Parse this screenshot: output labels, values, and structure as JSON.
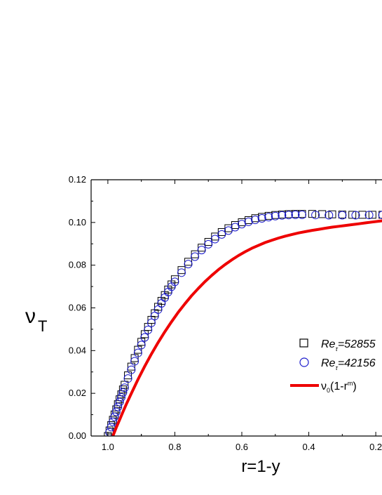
{
  "chart_data": {
    "type": "scatter",
    "xlabel": "r=1-y",
    "ylabel_main": "ν",
    "ylabel_sub": "T",
    "xlim": [
      1.05,
      0.15
    ],
    "ylim": [
      0.0,
      0.12
    ],
    "x_ticks": [
      "1.0",
      "0.8",
      "0.6",
      "0.4",
      "0.2"
    ],
    "y_ticks": [
      "0.00",
      "0.02",
      "0.04",
      "0.06",
      "0.08",
      "0.10",
      "0.12"
    ],
    "grid": false,
    "legend_position": "right",
    "colors": {
      "squares": "#000000",
      "circles": "#1a1acc",
      "fit": "#ee0000"
    },
    "series": [
      {
        "name": "Re_τ=52855",
        "legend_base": "Re",
        "legend_sub": "τ",
        "legend_rest": "=52855",
        "marker": "square",
        "r": [
          1.0,
          0.995,
          0.99,
          0.985,
          0.98,
          0.975,
          0.97,
          0.965,
          0.96,
          0.955,
          0.95,
          0.94,
          0.93,
          0.92,
          0.91,
          0.9,
          0.89,
          0.88,
          0.87,
          0.86,
          0.85,
          0.84,
          0.83,
          0.82,
          0.81,
          0.8,
          0.78,
          0.76,
          0.74,
          0.72,
          0.7,
          0.68,
          0.66,
          0.64,
          0.62,
          0.6,
          0.58,
          0.56,
          0.54,
          0.52,
          0.5,
          0.48,
          0.46,
          0.44,
          0.42,
          0.39,
          0.36,
          0.33,
          0.3,
          0.27,
          0.24,
          0.21,
          0.18
        ],
        "nu": [
          0.0,
          0.0026,
          0.0051,
          0.0076,
          0.0101,
          0.0125,
          0.0149,
          0.0172,
          0.0195,
          0.0218,
          0.024,
          0.0284,
          0.0325,
          0.0365,
          0.0404,
          0.0441,
          0.0477,
          0.0511,
          0.0544,
          0.0575,
          0.0605,
          0.0633,
          0.066,
          0.0686,
          0.071,
          0.0734,
          0.0777,
          0.0816,
          0.0851,
          0.0882,
          0.0909,
          0.0934,
          0.0955,
          0.0973,
          0.0988,
          0.1001,
          0.1011,
          0.102,
          0.1026,
          0.1031,
          0.1035,
          0.1037,
          0.1039,
          0.104,
          0.104,
          0.104,
          0.1039,
          0.1038,
          0.1037,
          0.1036,
          0.1036,
          0.1036,
          0.1036
        ]
      },
      {
        "name": "Re_τ=42156",
        "legend_base": "Re",
        "legend_sub": "τ",
        "legend_rest": "=42156",
        "marker": "circle",
        "r": [
          0.995,
          0.99,
          0.985,
          0.98,
          0.975,
          0.97,
          0.965,
          0.96,
          0.955,
          0.95,
          0.94,
          0.93,
          0.92,
          0.91,
          0.9,
          0.89,
          0.88,
          0.87,
          0.86,
          0.85,
          0.84,
          0.83,
          0.82,
          0.81,
          0.8,
          0.78,
          0.76,
          0.74,
          0.72,
          0.7,
          0.68,
          0.66,
          0.64,
          0.62,
          0.6,
          0.58,
          0.56,
          0.54,
          0.52,
          0.5,
          0.48,
          0.46,
          0.44,
          0.42,
          0.38,
          0.34,
          0.3,
          0.26,
          0.22,
          0.18
        ],
        "nu": [
          0.0018,
          0.0042,
          0.0066,
          0.009,
          0.0113,
          0.0136,
          0.0159,
          0.0181,
          0.0204,
          0.0226,
          0.0269,
          0.031,
          0.035,
          0.0389,
          0.0426,
          0.0462,
          0.0497,
          0.053,
          0.0562,
          0.0592,
          0.0621,
          0.0648,
          0.0674,
          0.0699,
          0.0722,
          0.0765,
          0.0805,
          0.084,
          0.0871,
          0.0898,
          0.0922,
          0.0944,
          0.0962,
          0.0978,
          0.0992,
          0.1003,
          0.1012,
          0.1019,
          0.1025,
          0.103,
          0.1033,
          0.1035,
          0.1036,
          0.1036,
          0.1035,
          0.1034,
          0.1034,
          0.1034,
          0.1035,
          0.1035
        ]
      },
      {
        "name": "ν0(1-r^m)",
        "legend_base": "ν",
        "legend_sub": "0",
        "legend_rest": "(1-r",
        "legend_sup": "m",
        "legend_end": ")",
        "marker": "line",
        "r": [
          0.985,
          0.975,
          0.965,
          0.955,
          0.945,
          0.93,
          0.91,
          0.89,
          0.87,
          0.85,
          0.83,
          0.81,
          0.79,
          0.77,
          0.75,
          0.73,
          0.71,
          0.69,
          0.67,
          0.65,
          0.63,
          0.61,
          0.59,
          0.57,
          0.55,
          0.53,
          0.51,
          0.49,
          0.47,
          0.45,
          0.43,
          0.41,
          0.39,
          0.37,
          0.35,
          0.33,
          0.31,
          0.29,
          0.27,
          0.25,
          0.23,
          0.21,
          0.19,
          0.17,
          0.15
        ],
        "nu": [
          0.0,
          0.0039,
          0.0076,
          0.0113,
          0.0149,
          0.0199,
          0.0265,
          0.0326,
          0.0384,
          0.0438,
          0.0488,
          0.0535,
          0.0579,
          0.0619,
          0.0657,
          0.0691,
          0.0723,
          0.0752,
          0.0779,
          0.0803,
          0.0825,
          0.0845,
          0.0863,
          0.0879,
          0.0893,
          0.0906,
          0.0917,
          0.0927,
          0.0936,
          0.0944,
          0.0951,
          0.0957,
          0.0963,
          0.0968,
          0.0973,
          0.0978,
          0.0982,
          0.0986,
          0.099,
          0.0994,
          0.0998,
          0.1002,
          0.1006,
          0.101,
          0.1014
        ]
      }
    ]
  }
}
